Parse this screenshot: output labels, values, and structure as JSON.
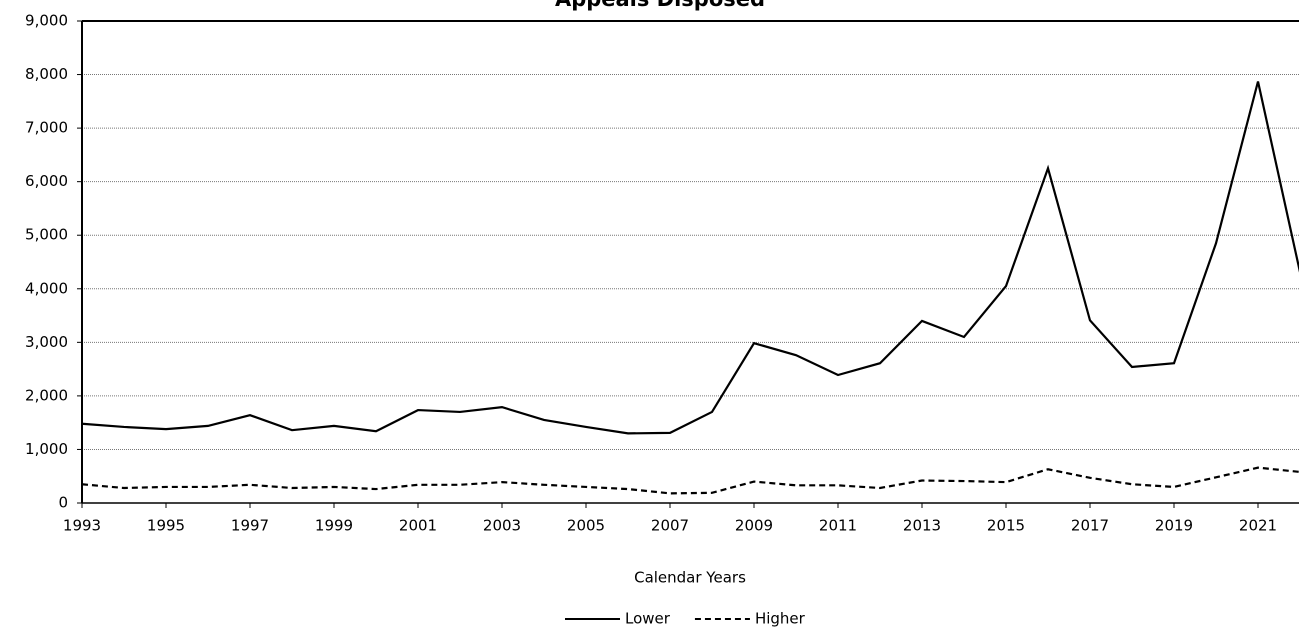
{
  "chart_data": {
    "type": "line",
    "title": "Appeals Disposed",
    "xlabel": "Calendar Years",
    "x": [
      1993,
      1994,
      1995,
      1996,
      1997,
      1998,
      1999,
      2000,
      2001,
      2002,
      2003,
      2004,
      2005,
      2006,
      2007,
      2008,
      2009,
      2010,
      2011,
      2012,
      2013,
      2014,
      2015,
      2016,
      2017,
      2018,
      2019,
      2020,
      2021,
      2022
    ],
    "series": [
      {
        "name": "Lower",
        "color": "#000000",
        "linestyle": "solid",
        "values": [
          1480,
          1420,
          1380,
          1440,
          1640,
          1360,
          1440,
          1340,
          1735,
          1700,
          1790,
          1550,
          1420,
          1300,
          1310,
          1700,
          2985,
          2760,
          2390,
          2610,
          3400,
          3100,
          4050,
          6250,
          3410,
          2540,
          2610,
          4850,
          7870,
          4310
        ]
      },
      {
        "name": "Higher",
        "color": "#000000",
        "linestyle": "dashed",
        "values": [
          350,
          280,
          300,
          300,
          340,
          280,
          300,
          260,
          340,
          340,
          390,
          340,
          300,
          260,
          180,
          190,
          400,
          330,
          330,
          280,
          420,
          410,
          390,
          630,
          470,
          350,
          300,
          480,
          660,
          580
        ]
      }
    ],
    "xlim": [
      1993,
      2022
    ],
    "xticks": [
      1993,
      1995,
      1997,
      1999,
      2001,
      2003,
      2005,
      2007,
      2009,
      2011,
      2013,
      2015,
      2017,
      2019,
      2021
    ],
    "ylim": [
      0,
      9000
    ],
    "yticks": [
      0,
      {
        "value": 1000,
        "label": "1,000"
      },
      {
        "value": 2000,
        "label": "2,000"
      },
      {
        "value": 3000,
        "label": "3,000"
      },
      {
        "value": 4000,
        "label": "4,000"
      },
      {
        "value": 5000,
        "label": "5,000"
      },
      {
        "value": 6000,
        "label": "6,000"
      },
      {
        "value": 7000,
        "label": "7,000"
      },
      {
        "value": 8000,
        "label": "8,000"
      },
      {
        "value": 9000,
        "label": "9,000"
      }
    ],
    "grid": true,
    "legend": "bottom"
  }
}
